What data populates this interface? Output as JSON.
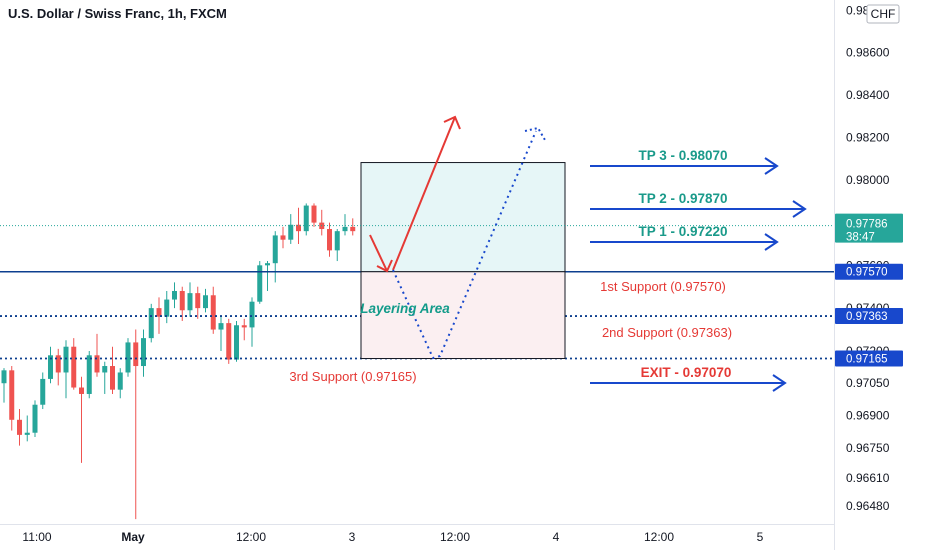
{
  "header": {
    "title": "U.S. Dollar / Swiss Franc, 1h, FXCM",
    "currency_button": "CHF"
  },
  "colors": {
    "up": "#26a69a",
    "down": "#ef5350",
    "blue": "#1848cc",
    "support": "#0d3f8f",
    "red_text": "#e53935",
    "teal_text": "#1a9a8a",
    "layering_text": "#139b8a"
  },
  "chart_data": {
    "type": "candlestick",
    "title": "U.S. Dollar / Swiss Franc, 1h, FXCM",
    "y_scale": "log",
    "ylim": [
      0.9643,
      0.9883
    ],
    "y_ticks": [
      "0.98800",
      "0.98600",
      "0.98400",
      "0.98200",
      "0.98000",
      "0.97800",
      "0.97600",
      "0.97400",
      "0.97200",
      "0.97050",
      "0.96900",
      "0.96750",
      "0.96610",
      "0.96480"
    ],
    "x_ticks": [
      "11:00",
      "May",
      "12:00",
      "3",
      "12:00",
      "4",
      "12:00",
      "5"
    ],
    "x_tick_bold": [
      false,
      true,
      false,
      false,
      false,
      false,
      false,
      false
    ],
    "candles": [
      {
        "o": 0.9705,
        "h": 0.9712,
        "l": 0.9696,
        "c": 0.9711
      },
      {
        "o": 0.9711,
        "h": 0.9713,
        "l": 0.9683,
        "c": 0.9688
      },
      {
        "o": 0.9688,
        "h": 0.9693,
        "l": 0.9676,
        "c": 0.9681
      },
      {
        "o": 0.9681,
        "h": 0.969,
        "l": 0.9678,
        "c": 0.9682
      },
      {
        "o": 0.9682,
        "h": 0.9697,
        "l": 0.968,
        "c": 0.9695
      },
      {
        "o": 0.9695,
        "h": 0.971,
        "l": 0.9693,
        "c": 0.9707
      },
      {
        "o": 0.9707,
        "h": 0.9722,
        "l": 0.9705,
        "c": 0.9718
      },
      {
        "o": 0.9718,
        "h": 0.9721,
        "l": 0.9704,
        "c": 0.971
      },
      {
        "o": 0.971,
        "h": 0.9725,
        "l": 0.9698,
        "c": 0.9722
      },
      {
        "o": 0.9722,
        "h": 0.9726,
        "l": 0.9702,
        "c": 0.9703
      },
      {
        "o": 0.9703,
        "h": 0.9708,
        "l": 0.9668,
        "c": 0.97
      },
      {
        "o": 0.97,
        "h": 0.972,
        "l": 0.9698,
        "c": 0.9718
      },
      {
        "o": 0.9718,
        "h": 0.9728,
        "l": 0.9708,
        "c": 0.971
      },
      {
        "o": 0.971,
        "h": 0.9715,
        "l": 0.97,
        "c": 0.9713
      },
      {
        "o": 0.9713,
        "h": 0.9722,
        "l": 0.97,
        "c": 0.9702
      },
      {
        "o": 0.9702,
        "h": 0.9712,
        "l": 0.9698,
        "c": 0.971
      },
      {
        "o": 0.971,
        "h": 0.9726,
        "l": 0.9708,
        "c": 0.9724
      },
      {
        "o": 0.9724,
        "h": 0.973,
        "l": 0.9642,
        "c": 0.9713
      },
      {
        "o": 0.9713,
        "h": 0.973,
        "l": 0.9708,
        "c": 0.9726
      },
      {
        "o": 0.9726,
        "h": 0.9742,
        "l": 0.9724,
        "c": 0.974
      },
      {
        "o": 0.974,
        "h": 0.9745,
        "l": 0.9728,
        "c": 0.9736
      },
      {
        "o": 0.9736,
        "h": 0.9748,
        "l": 0.9733,
        "c": 0.9744
      },
      {
        "o": 0.9744,
        "h": 0.9752,
        "l": 0.974,
        "c": 0.9748
      },
      {
        "o": 0.9748,
        "h": 0.975,
        "l": 0.9734,
        "c": 0.9739
      },
      {
        "o": 0.9739,
        "h": 0.9752,
        "l": 0.9736,
        "c": 0.9747
      },
      {
        "o": 0.9747,
        "h": 0.975,
        "l": 0.9735,
        "c": 0.974
      },
      {
        "o": 0.974,
        "h": 0.9749,
        "l": 0.9738,
        "c": 0.9746
      },
      {
        "o": 0.9746,
        "h": 0.975,
        "l": 0.9728,
        "c": 0.973
      },
      {
        "o": 0.973,
        "h": 0.9736,
        "l": 0.972,
        "c": 0.9733
      },
      {
        "o": 0.9733,
        "h": 0.9735,
        "l": 0.9714,
        "c": 0.9716
      },
      {
        "o": 0.9716,
        "h": 0.9734,
        "l": 0.9715,
        "c": 0.9732
      },
      {
        "o": 0.9732,
        "h": 0.9735,
        "l": 0.9725,
        "c": 0.9731
      },
      {
        "o": 0.9731,
        "h": 0.9745,
        "l": 0.9722,
        "c": 0.9743
      },
      {
        "o": 0.9743,
        "h": 0.9762,
        "l": 0.9742,
        "c": 0.976
      },
      {
        "o": 0.976,
        "h": 0.9762,
        "l": 0.9748,
        "c": 0.9761
      },
      {
        "o": 0.9761,
        "h": 0.9776,
        "l": 0.9752,
        "c": 0.9774
      },
      {
        "o": 0.9774,
        "h": 0.9778,
        "l": 0.9768,
        "c": 0.9772
      },
      {
        "o": 0.9772,
        "h": 0.9784,
        "l": 0.977,
        "c": 0.9779
      },
      {
        "o": 0.9779,
        "h": 0.9787,
        "l": 0.977,
        "c": 0.9776
      },
      {
        "o": 0.9776,
        "h": 0.9789,
        "l": 0.9774,
        "c": 0.9788
      },
      {
        "o": 0.9788,
        "h": 0.9789,
        "l": 0.9778,
        "c": 0.978
      },
      {
        "o": 0.978,
        "h": 0.9786,
        "l": 0.9774,
        "c": 0.9777
      },
      {
        "o": 0.9777,
        "h": 0.978,
        "l": 0.9764,
        "c": 0.9767
      },
      {
        "o": 0.9767,
        "h": 0.9777,
        "l": 0.9762,
        "c": 0.9776
      },
      {
        "o": 0.9776,
        "h": 0.9784,
        "l": 0.9774,
        "c": 0.9778
      },
      {
        "o": 0.9778,
        "h": 0.9782,
        "l": 0.9774,
        "c": 0.9776
      }
    ],
    "horizontal_levels": [
      {
        "value": 0.9757,
        "style": "solid",
        "tag": "0.97570"
      },
      {
        "value": 0.97363,
        "style": "dotted",
        "tag": "0.97363"
      },
      {
        "value": 0.97165,
        "style": "dotted",
        "tag": "0.97165"
      }
    ],
    "current_price": {
      "value": 0.97786,
      "label": "0.97786",
      "timer": "38:47"
    },
    "zone": {
      "low": 0.97165,
      "mid": 0.9757,
      "high": 0.98082
    },
    "annotations": {
      "tp3": "TP 3 - 0.98070",
      "tp2": "TP 2 - 0.97870",
      "tp1": "TP 1 - 0.97220",
      "support1": "1st Support (0.97570)",
      "support2": "2nd Support (0.97363)",
      "support3": "3rd Support (0.97165)",
      "exit": "EXIT - 0.97070",
      "layering": "Layering Area"
    }
  }
}
